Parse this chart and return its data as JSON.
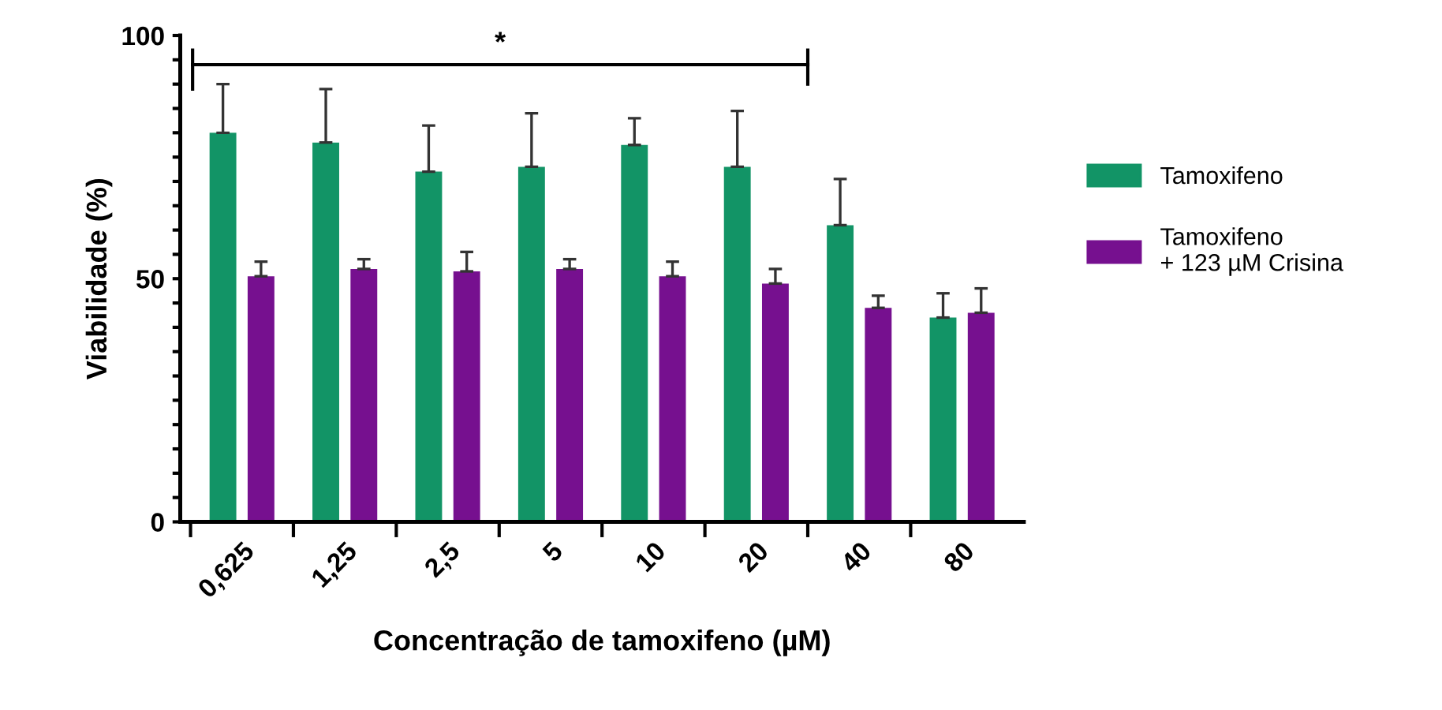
{
  "chart_data": {
    "type": "bar",
    "xlabel": "Concentração de tamoxifeno (µM)",
    "ylabel": "Viabilidade (%)",
    "categories": [
      "0,625",
      "1,25",
      "2,5",
      "5",
      "10",
      "20",
      "40",
      "80"
    ],
    "series": [
      {
        "name": "Tamoxifeno",
        "color": "#129466",
        "values": [
          80,
          78,
          72,
          73,
          77.5,
          73,
          61,
          42
        ],
        "errors": [
          [
            80,
            90
          ],
          [
            78,
            89
          ],
          [
            72,
            81.5
          ],
          [
            73,
            84
          ],
          [
            77.5,
            83
          ],
          [
            73,
            84.5
          ],
          [
            61,
            70.5
          ],
          [
            42,
            47
          ]
        ]
      },
      {
        "name": "Tamoxifeno\n+ 123 µM Crisina",
        "color": "#76108f",
        "values": [
          50.5,
          52,
          51.5,
          52,
          50.5,
          49,
          44,
          43
        ],
        "errors": [
          [
            50.5,
            53.5
          ],
          [
            52,
            54
          ],
          [
            51.5,
            55.5
          ],
          [
            52,
            54
          ],
          [
            50.5,
            53.5
          ],
          [
            49,
            52
          ],
          [
            44,
            46.5
          ],
          [
            43,
            48
          ]
        ]
      }
    ],
    "ylim": [
      0,
      100
    ],
    "yticks": [
      0,
      {
        "value": 5,
        "label": null
      },
      {
        "value": 10,
        "label": null
      },
      {
        "value": 15,
        "label": null
      },
      {
        "value": 20,
        "label": null
      },
      {
        "value": 25,
        "label": null
      },
      {
        "value": 30,
        "label": null
      },
      {
        "value": 35,
        "label": null
      },
      {
        "value": 40,
        "label": null
      },
      {
        "value": 45,
        "label": null
      },
      50,
      {
        "value": 55,
        "label": null
      },
      {
        "value": 60,
        "label": null
      },
      {
        "value": 65,
        "label": null
      },
      {
        "value": 70,
        "label": null
      },
      {
        "value": 75,
        "label": null
      },
      {
        "value": 80,
        "label": null
      },
      {
        "value": 85,
        "label": null
      },
      {
        "value": 90,
        "label": null
      },
      {
        "value": 95,
        "label": null
      },
      100
    ],
    "annotations": [
      "*"
    ],
    "legend": "right",
    "grid": false
  }
}
